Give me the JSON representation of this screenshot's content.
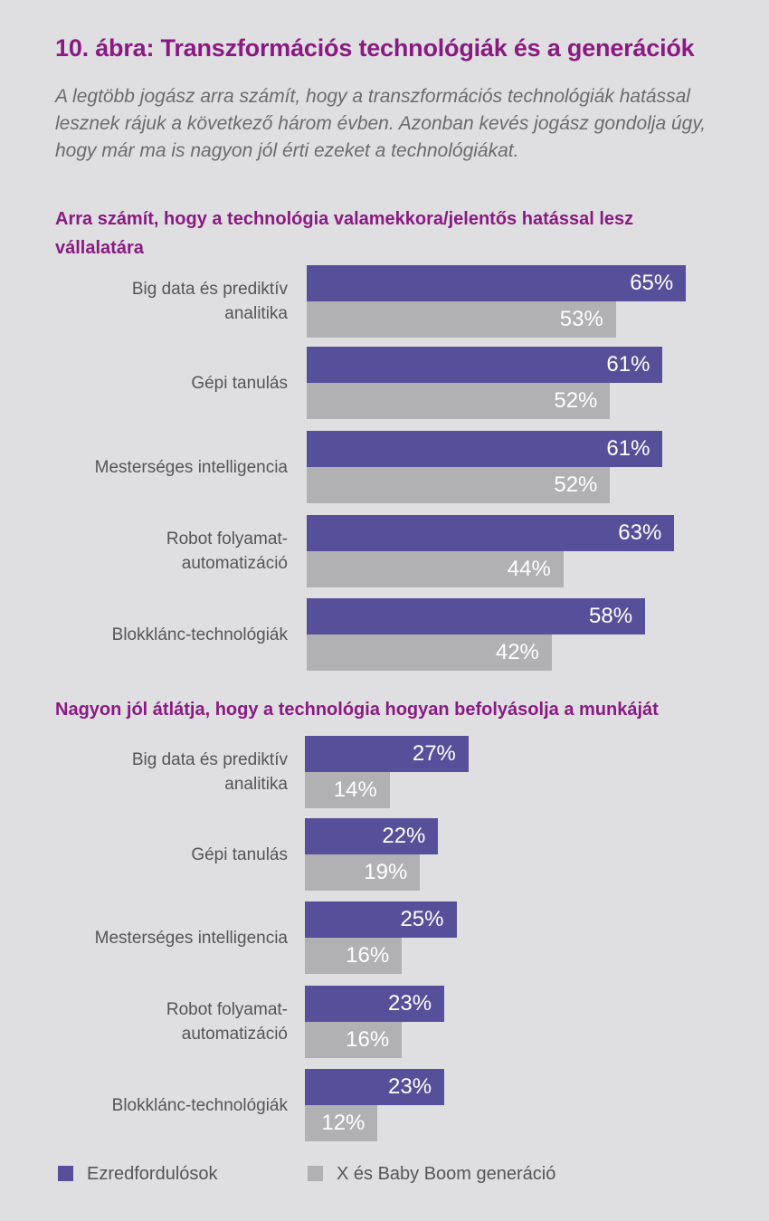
{
  "title": "10. ábra: Transzformációs technológiák és a generációk",
  "subtitle": "A legtöbb jogász arra számít, hogy a transzformációs technológiák hatással lesznek rájuk a következő három évben. Azonban kevés jogász gondolja úgy, hogy már ma is nagyon jól érti ezeket a technológiákat.",
  "colors": {
    "millennials": "#56509a",
    "genx_boomers": "#b1b1b4",
    "accent": "#8a1a82"
  },
  "legend": [
    {
      "name": "Ezredfordulósok",
      "color": "#56509a"
    },
    {
      "name": "X és Baby Boom generáció",
      "color": "#b1b1b4"
    }
  ],
  "chart_data": [
    {
      "type": "bar",
      "orientation": "horizontal",
      "title": "Arra számít, hogy a technológia valamekkora/jelentős hatással lesz vállalatára",
      "categories": [
        "Big data és prediktív analitika",
        "Gépi tanulás",
        "Mesterséges intelligencia",
        "Robot folyamat-automatizáció",
        "Blokklánc-technológiák"
      ],
      "series": [
        {
          "name": "Ezredfordulósok",
          "values": [
            65,
            61,
            61,
            63,
            58
          ],
          "labels": [
            "65%",
            "61%",
            "61%",
            "63%",
            "58%"
          ]
        },
        {
          "name": "X és Baby Boom generáció",
          "values": [
            53,
            52,
            52,
            44,
            42
          ],
          "labels": [
            "53%",
            "52%",
            "52%",
            "44%",
            "42%"
          ]
        }
      ],
      "xlim": [
        0,
        100
      ],
      "grid": false
    },
    {
      "type": "bar",
      "orientation": "horizontal",
      "title": "Nagyon jól átlátja, hogy a technológia hogyan befolyásolja a munkáját",
      "categories": [
        "Big data és prediktív analitika",
        "Gépi tanulás",
        "Mesterséges intelligencia",
        "Robot folyamat-automatizáció",
        "Blokklánc-technológiák"
      ],
      "series": [
        {
          "name": "Ezredfordulósok",
          "values": [
            27,
            22,
            25,
            23,
            23
          ],
          "labels": [
            "27%",
            "22%",
            "25%",
            "23%",
            "23%"
          ]
        },
        {
          "name": "X és Baby Boom generáció",
          "values": [
            14,
            19,
            16,
            16,
            12
          ],
          "labels": [
            "14%",
            "19%",
            "16%",
            "16%",
            "12%"
          ]
        }
      ],
      "xlim": [
        0,
        100
      ],
      "grid": false
    }
  ]
}
